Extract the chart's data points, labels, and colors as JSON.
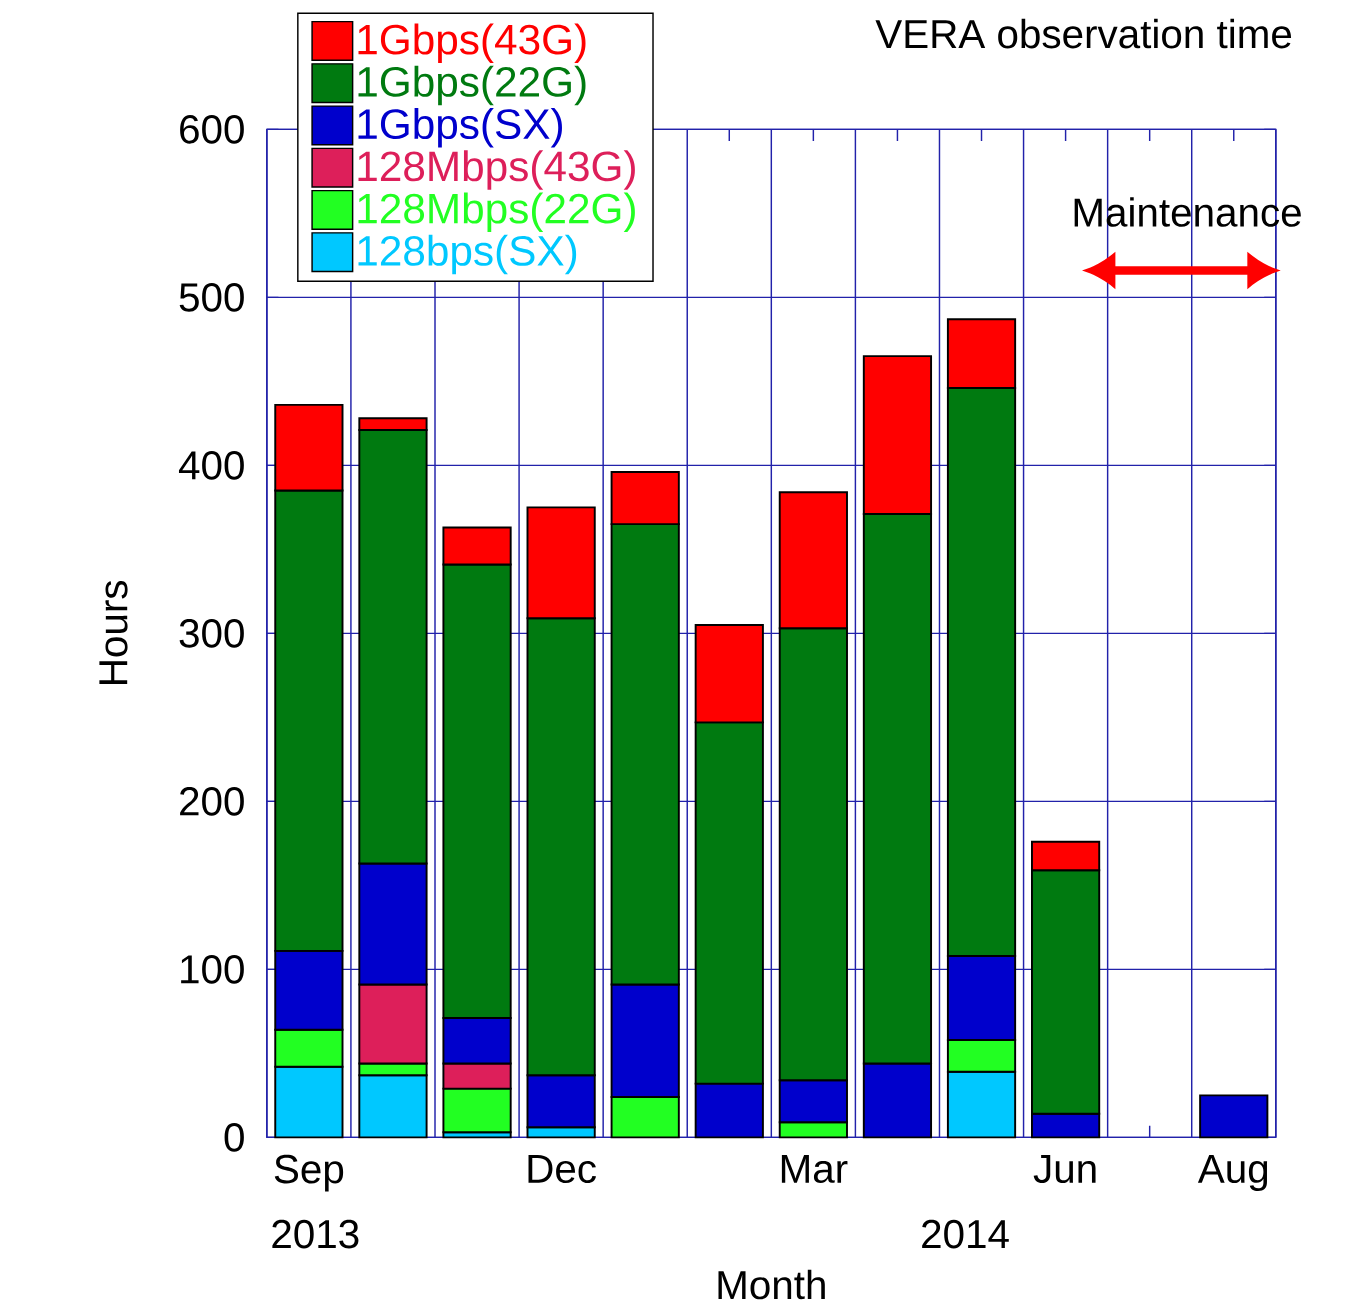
{
  "chart_data": {
    "type": "bar",
    "stacked": true,
    "title": "VERA observation time",
    "xlabel": "Month",
    "ylabel": "Hours",
    "categories": [
      "Sep",
      null,
      null,
      "Dec",
      null,
      null,
      "Mar",
      null,
      null,
      "Jun",
      null,
      "Aug"
    ],
    "series": [
      {
        "name": "128bps(SX)",
        "color": "#00c8ff",
        "values": [
          42,
          37,
          3,
          6,
          null,
          null,
          null,
          null,
          39,
          null,
          null,
          null
        ]
      },
      {
        "name": "128Mbps(22G)",
        "color": "#22ff22",
        "values": [
          22,
          7,
          26,
          null,
          24,
          null,
          9,
          null,
          19,
          null,
          null,
          null
        ]
      },
      {
        "name": "128Mbps(43G)",
        "color": "#dd1f5a",
        "values": [
          null,
          47,
          15,
          null,
          null,
          null,
          null,
          null,
          null,
          null,
          null,
          null
        ]
      },
      {
        "name": "1Gbps(SX)",
        "color": "#0000cc",
        "values": [
          47,
          72,
          27,
          31,
          67,
          32,
          25,
          44,
          50,
          14,
          null,
          25
        ]
      },
      {
        "name": "1Gbps(22G)",
        "color": "#007a10",
        "values": [
          274,
          258,
          270,
          272,
          274,
          215,
          269,
          327,
          338,
          145,
          null,
          null
        ]
      },
      {
        "name": "1Gbps(43G)",
        "color": "#ff0000",
        "values": [
          51,
          7,
          22,
          66,
          31,
          58,
          81,
          94,
          41,
          17,
          null,
          null
        ]
      }
    ],
    "ylim": [
      0,
      600
    ],
    "yticks": [
      0,
      100,
      200,
      300,
      400,
      500,
      600
    ],
    "grid": true,
    "legend": "top left",
    "annotations": [
      "2013",
      "2014",
      "Maintenance"
    ]
  }
}
